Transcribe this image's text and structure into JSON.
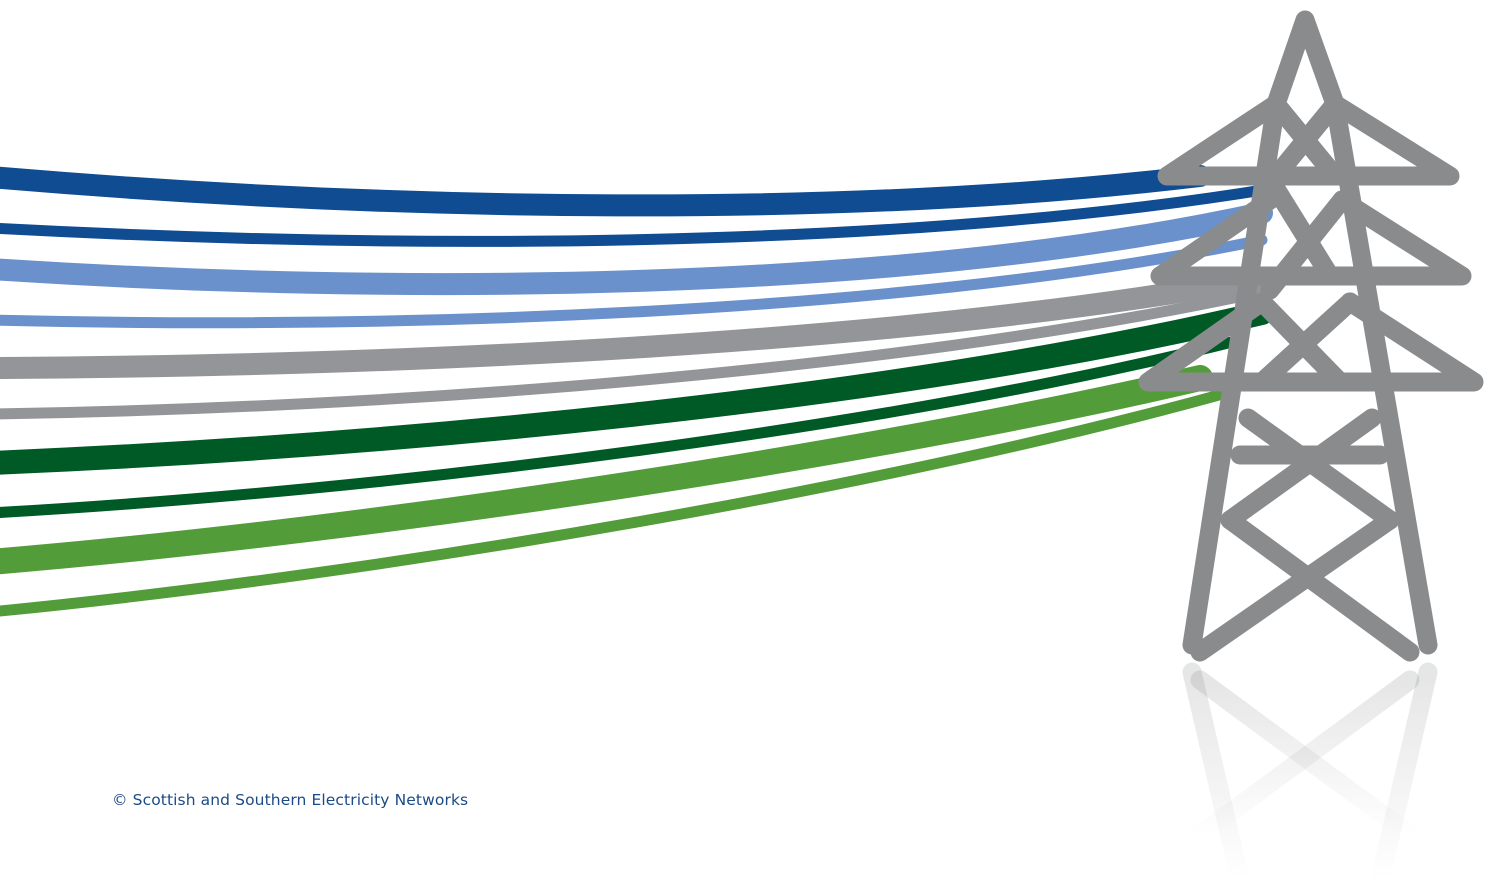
{
  "footer": {
    "copyright": "© Scottish and Southern Electricity Networks"
  },
  "graphic": {
    "icon": "electricity-pylon-icon",
    "line_colors": [
      "#0f4c92",
      "#0f4c92",
      "#6b91cc",
      "#6b91cc",
      "#939598",
      "#939598",
      "#005a25",
      "#005a25",
      "#529d3a",
      "#529d3a"
    ],
    "pylon_color": "#8a8b8d"
  }
}
